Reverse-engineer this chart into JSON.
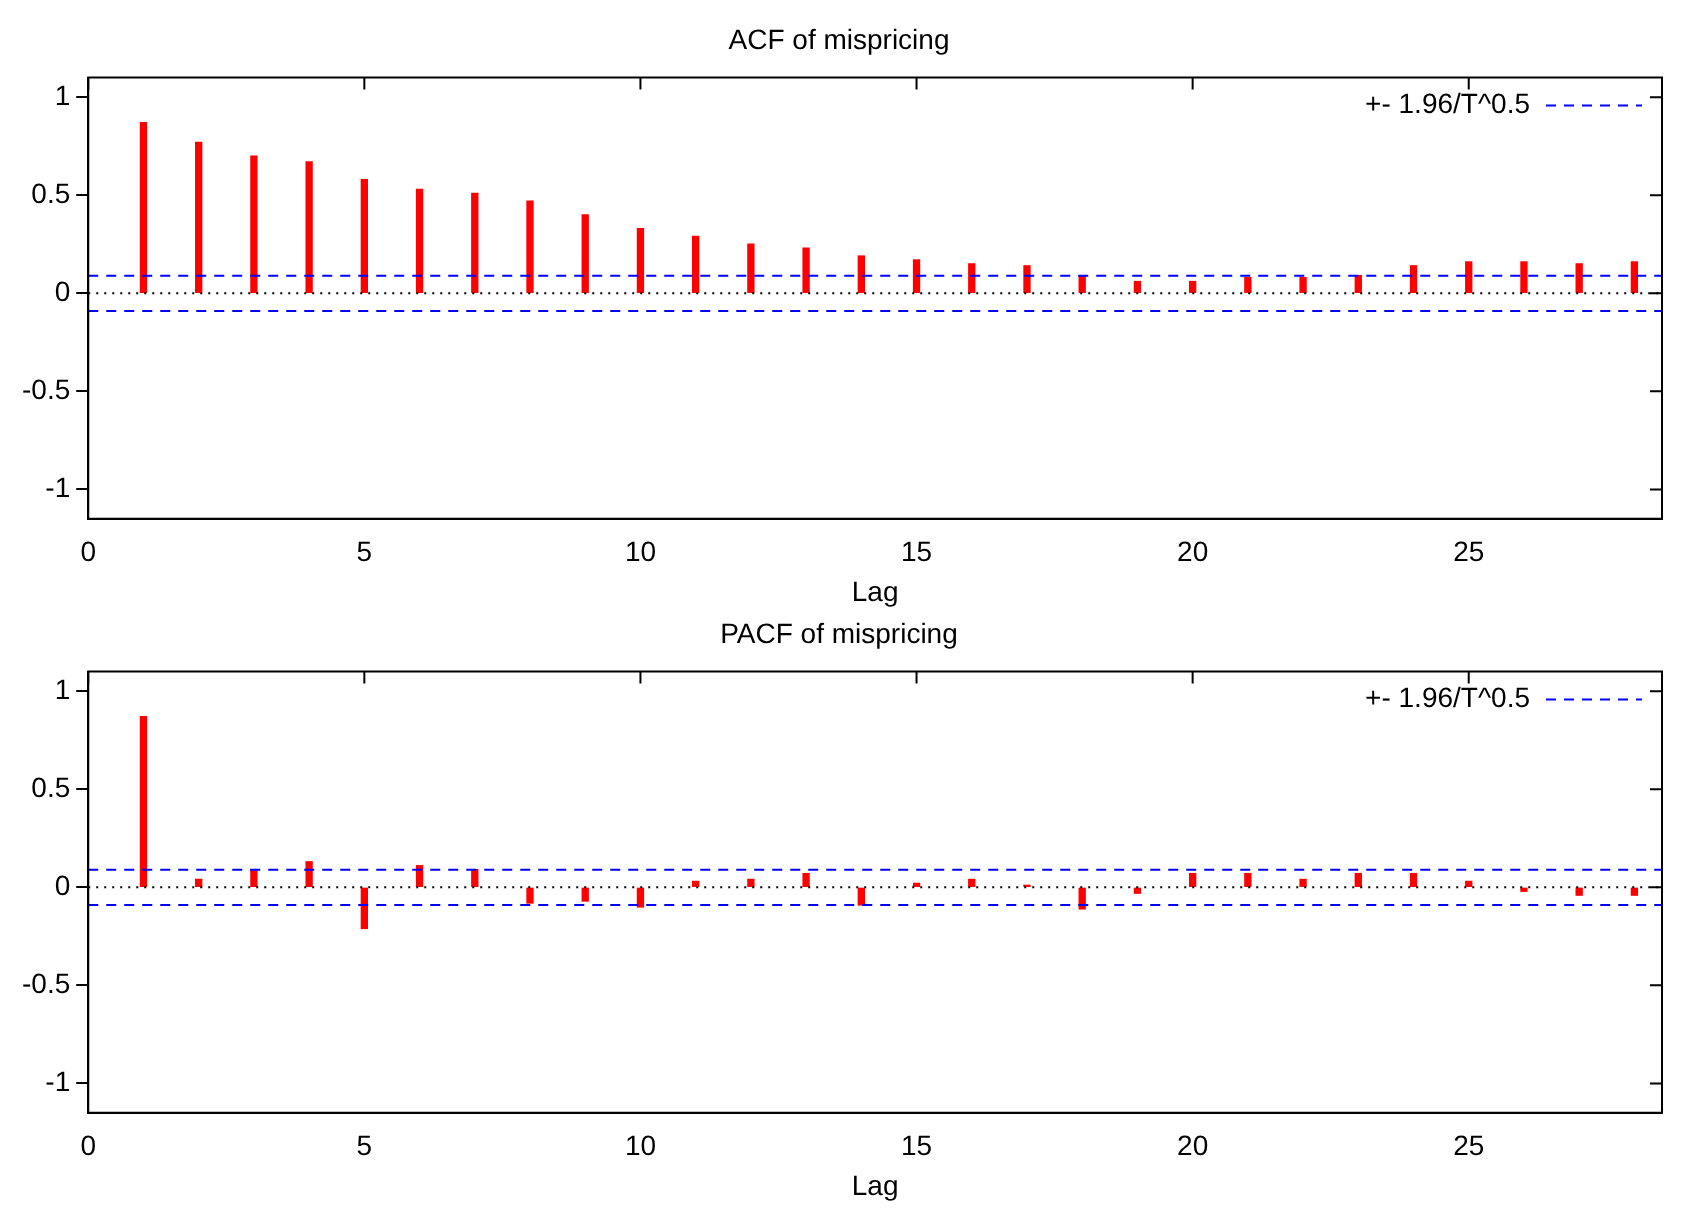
{
  "chart_data": [
    {
      "type": "bar",
      "title": "ACF of mispricing",
      "xlabel": "Lag",
      "x": [
        1,
        2,
        3,
        4,
        5,
        6,
        7,
        8,
        9,
        10,
        11,
        12,
        13,
        14,
        15,
        16,
        17,
        18,
        19,
        20,
        21,
        22,
        23,
        24,
        25,
        26,
        27,
        28
      ],
      "series": [
        {
          "color": "#ff0000",
          "values": [
            0.87,
            0.77,
            0.7,
            0.67,
            0.58,
            0.53,
            0.51,
            0.47,
            0.4,
            0.33,
            0.29,
            0.25,
            0.23,
            0.19,
            0.17,
            0.15,
            0.14,
            0.09,
            0.06,
            0.06,
            0.08,
            0.08,
            0.09,
            0.14,
            0.16,
            0.16,
            0.15,
            0.16
          ]
        }
      ],
      "xlim": [
        0,
        28.5
      ],
      "xticks": [
        0,
        5,
        10,
        15,
        20,
        25
      ],
      "ylim": [
        -1.15,
        1.1
      ],
      "yticks": [
        -1,
        -0.5,
        0,
        0.5,
        1
      ],
      "grid": false,
      "legend": "top right",
      "ref_lines": [
        {
          "axis": "y",
          "value": 0.09,
          "label": "+- 1.96/T^0.5",
          "color": "#0000ff",
          "line_style": "dashed"
        },
        {
          "axis": "y",
          "value": -0.09,
          "color": "#0000ff",
          "line_style": "dashed"
        },
        {
          "axis": "y",
          "value": 0,
          "color": "#000000",
          "line_style": "dotted"
        }
      ]
    },
    {
      "type": "bar",
      "title": "PACF of mispricing",
      "xlabel": "Lag",
      "x": [
        1,
        2,
        3,
        4,
        5,
        6,
        7,
        8,
        9,
        10,
        11,
        12,
        13,
        14,
        15,
        16,
        17,
        18,
        19,
        20,
        21,
        22,
        23,
        24,
        25,
        26,
        27,
        28
      ],
      "series": [
        {
          "color": "#ff0000",
          "values": [
            0.87,
            0.04,
            0.09,
            0.13,
            -0.21,
            0.11,
            0.09,
            -0.08,
            -0.07,
            -0.1,
            0.03,
            0.04,
            0.07,
            -0.09,
            0.02,
            0.04,
            0.01,
            -0.11,
            -0.03,
            0.07,
            0.07,
            0.04,
            0.07,
            0.07,
            0.03,
            -0.02,
            -0.04,
            -0.04
          ]
        }
      ],
      "xlim": [
        0,
        28.5
      ],
      "xticks": [
        0,
        5,
        10,
        15,
        20,
        25
      ],
      "ylim": [
        -1.15,
        1.1
      ],
      "yticks": [
        -1,
        -0.5,
        0,
        0.5,
        1
      ],
      "grid": false,
      "legend": "top right",
      "ref_lines": [
        {
          "axis": "y",
          "value": 0.09,
          "label": "+- 1.96/T^0.5",
          "color": "#0000ff",
          "line_style": "dashed"
        },
        {
          "axis": "y",
          "value": -0.09,
          "color": "#0000ff",
          "line_style": "dashed"
        },
        {
          "axis": "y",
          "value": 0,
          "color": "#000000",
          "line_style": "dotted"
        }
      ]
    }
  ]
}
